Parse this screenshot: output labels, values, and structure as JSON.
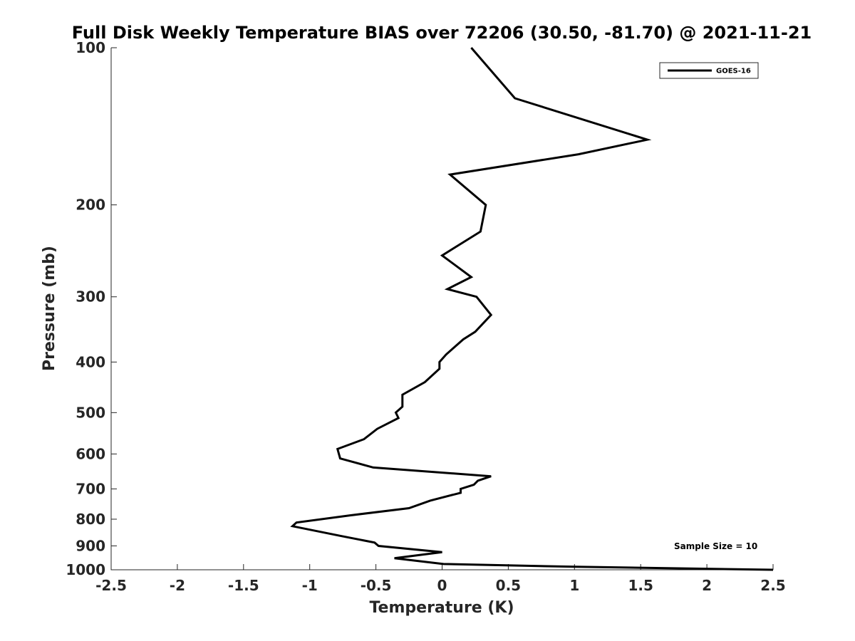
{
  "chart_data": {
    "type": "line",
    "title": "Full Disk Weekly Temperature BIAS over 72206 (30.50, -81.70) @ 2021-11-21",
    "xlabel": "Temperature (K)",
    "ylabel": "Pressure (mb)",
    "xlim": [
      -2.5,
      2.5
    ],
    "ylim": [
      100,
      1000
    ],
    "y_scale": "log",
    "y_reversed": true,
    "grid": false,
    "x_ticks": [
      "-2.5",
      "-2",
      "-1.5",
      "-1",
      "-0.5",
      "0",
      "0.5",
      "1",
      "1.5",
      "2",
      "2.5"
    ],
    "y_ticks": [
      "100",
      "200",
      "300",
      "400",
      "500",
      "600",
      "700",
      "800",
      "900",
      "1000"
    ],
    "legend_position": "top-right",
    "annotation": "Sample Size = 10",
    "series": [
      {
        "name": "GOES-16",
        "color": "#000000",
        "points": [
          {
            "x": 0.22,
            "p": 100
          },
          {
            "x": 0.55,
            "p": 125
          },
          {
            "x": 1.55,
            "p": 150
          },
          {
            "x": 1.03,
            "p": 160
          },
          {
            "x": 0.06,
            "p": 175
          },
          {
            "x": 0.33,
            "p": 200
          },
          {
            "x": 0.29,
            "p": 225
          },
          {
            "x": 0.0,
            "p": 250
          },
          {
            "x": 0.22,
            "p": 275
          },
          {
            "x": 0.04,
            "p": 290
          },
          {
            "x": 0.26,
            "p": 300
          },
          {
            "x": 0.37,
            "p": 325
          },
          {
            "x": 0.25,
            "p": 350
          },
          {
            "x": 0.16,
            "p": 362
          },
          {
            "x": 0.03,
            "p": 387
          },
          {
            "x": -0.02,
            "p": 400
          },
          {
            "x": -0.02,
            "p": 412
          },
          {
            "x": -0.13,
            "p": 437
          },
          {
            "x": -0.3,
            "p": 462
          },
          {
            "x": -0.3,
            "p": 487
          },
          {
            "x": -0.35,
            "p": 500
          },
          {
            "x": -0.33,
            "p": 512
          },
          {
            "x": -0.49,
            "p": 537
          },
          {
            "x": -0.59,
            "p": 562
          },
          {
            "x": -0.79,
            "p": 587
          },
          {
            "x": -0.77,
            "p": 612
          },
          {
            "x": -0.52,
            "p": 637
          },
          {
            "x": 0.37,
            "p": 662
          },
          {
            "x": 0.27,
            "p": 675
          },
          {
            "x": 0.24,
            "p": 687
          },
          {
            "x": 0.14,
            "p": 700
          },
          {
            "x": 0.14,
            "p": 712
          },
          {
            "x": -0.09,
            "p": 737
          },
          {
            "x": -0.25,
            "p": 762
          },
          {
            "x": -0.7,
            "p": 787
          },
          {
            "x": -1.1,
            "p": 812
          },
          {
            "x": -1.13,
            "p": 825
          },
          {
            "x": -0.76,
            "p": 862
          },
          {
            "x": -0.51,
            "p": 887
          },
          {
            "x": -0.48,
            "p": 900
          },
          {
            "x": 0.0,
            "p": 925
          },
          {
            "x": -0.36,
            "p": 950
          },
          {
            "x": 0.01,
            "p": 975
          },
          {
            "x": 1.01,
            "p": 987
          },
          {
            "x": 2.5,
            "p": 1000
          }
        ]
      }
    ]
  }
}
